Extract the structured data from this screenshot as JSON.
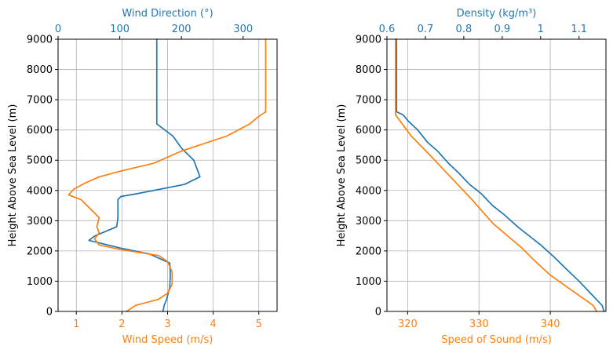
{
  "colors": {
    "blue": "#1f77b4",
    "orange": "#ff7f0e",
    "grid": "#b0b0b0",
    "axis": "#000000"
  },
  "chart_data": [
    {
      "type": "line",
      "title": "",
      "grid": true,
      "ylabel": "Height Above Sea Level (m)",
      "ylim": [
        0,
        9000
      ],
      "yticks": [
        0,
        1000,
        2000,
        3000,
        4000,
        5000,
        6000,
        7000,
        8000,
        9000
      ],
      "bottom_axis": {
        "label": "Wind Speed (m/s)",
        "color": "#ff7f0e",
        "lim": [
          0.6,
          5.4
        ],
        "ticks": [
          1,
          2,
          3,
          4,
          5
        ]
      },
      "top_axis": {
        "label": "Wind Direction (°)",
        "color": "#1f77b4",
        "lim": [
          0,
          355
        ],
        "ticks": [
          0,
          100,
          200,
          300
        ]
      },
      "series": [
        {
          "axis": "top",
          "color": "#1f77b4",
          "x": [
            170,
            172,
            176,
            181,
            182,
            181,
            148,
            100,
            50,
            60,
            95,
            97,
            97,
            102,
            130,
            205,
            230,
            220,
            200,
            186,
            160,
            160,
            160,
            160
          ],
          "y": [
            0,
            200,
            400,
            800,
            1200,
            1600,
            1900,
            2100,
            2350,
            2500,
            2800,
            3100,
            3700,
            3800,
            3900,
            4200,
            4450,
            5000,
            5400,
            5800,
            6200,
            6600,
            7000,
            9000
          ]
        },
        {
          "axis": "bottom",
          "color": "#ff7f0e",
          "x": [
            2.1,
            2.3,
            2.8,
            3.0,
            3.1,
            3.1,
            3.0,
            2.8,
            1.95,
            1.5,
            1.4,
            1.5,
            1.45,
            1.5,
            1.3,
            1.1,
            0.83,
            0.95,
            1.2,
            1.5,
            2.0,
            2.7,
            3.3,
            4.3,
            4.8,
            5.0,
            5.15,
            5.15,
            5.15
          ],
          "y": [
            0,
            200,
            400,
            600,
            900,
            1300,
            1650,
            1850,
            2050,
            2200,
            2400,
            2600,
            2800,
            3100,
            3400,
            3700,
            3850,
            4050,
            4250,
            4450,
            4650,
            4900,
            5300,
            5800,
            6200,
            6450,
            6600,
            8000,
            9000
          ]
        }
      ]
    },
    {
      "type": "line",
      "title": "",
      "grid": true,
      "ylabel": "Height Above Sea Level (m)",
      "ylim": [
        0,
        9000
      ],
      "yticks": [
        0,
        1000,
        2000,
        3000,
        4000,
        5000,
        6000,
        7000,
        8000,
        9000
      ],
      "bottom_axis": {
        "label": "Speed of Sound (m/s)",
        "color": "#ff7f0e",
        "lim": [
          317.1,
          347.8
        ],
        "ticks": [
          320,
          330,
          340
        ]
      },
      "top_axis": {
        "label": "Density (kg/m³)",
        "color": "#1f77b4",
        "lim": [
          0.6,
          1.17
        ],
        "ticks": [
          0.6,
          0.7,
          0.8,
          0.9,
          1.0,
          1.1
        ]
      },
      "series": [
        {
          "axis": "top",
          "color": "#1f77b4",
          "x": [
            1.165,
            1.16,
            1.13,
            1.1,
            1.067,
            1.035,
            1.0,
            0.97,
            0.94,
            0.905,
            0.875,
            0.845,
            0.815,
            0.785,
            0.76,
            0.732,
            0.705,
            0.68,
            0.655,
            0.642,
            0.625,
            0.625,
            0.625,
            0.625
          ],
          "y": [
            0,
            200,
            600,
            1000,
            1400,
            1800,
            2200,
            2500,
            2800,
            3200,
            3500,
            3900,
            4200,
            4600,
            4900,
            5300,
            5600,
            6000,
            6300,
            6500,
            6600,
            7000,
            8000,
            9000
          ]
        },
        {
          "axis": "bottom",
          "color": "#ff7f0e",
          "x": [
            346.5,
            346.0,
            343.0,
            340.0,
            337.7,
            336.0,
            334.0,
            332.0,
            330.5,
            329.0,
            327.0,
            325.0,
            323.0,
            320.5,
            318.3,
            318.3,
            318.3,
            318.3
          ],
          "y": [
            0,
            200,
            700,
            1200,
            1700,
            2100,
            2500,
            2900,
            3300,
            3700,
            4200,
            4700,
            5200,
            5800,
            6500,
            7000,
            8000,
            9000
          ]
        }
      ]
    }
  ]
}
